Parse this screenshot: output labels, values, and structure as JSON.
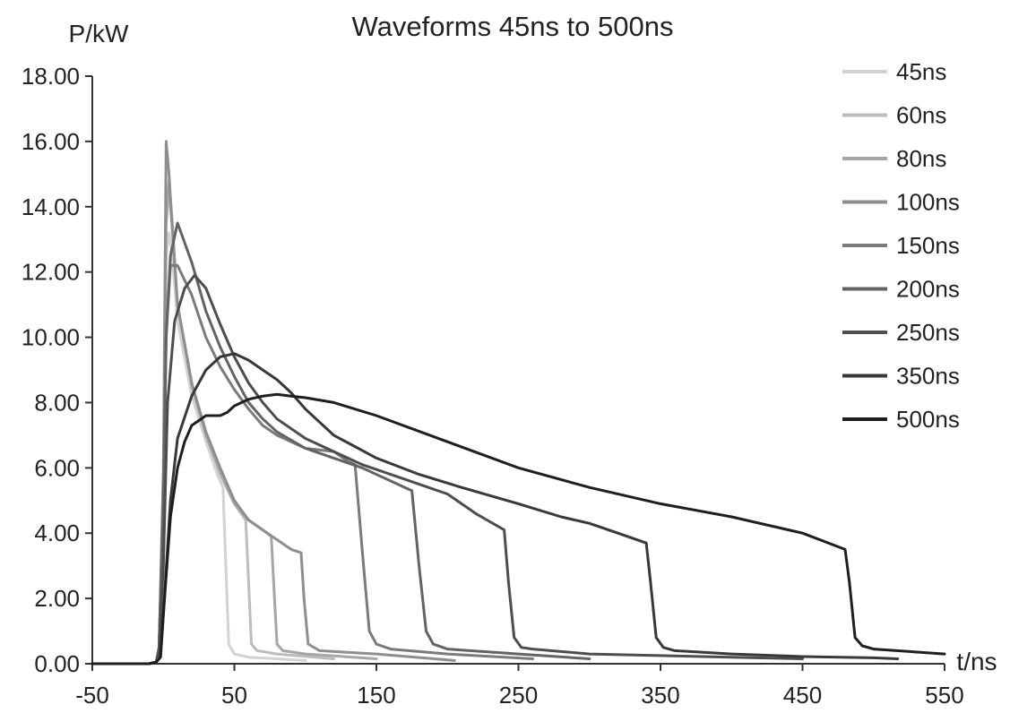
{
  "chart_data": {
    "type": "line",
    "title": "Waveforms 45ns to 500ns",
    "xlabel": "t/ns",
    "ylabel": "P/kW",
    "xlim": [
      -50,
      550
    ],
    "ylim": [
      0,
      18
    ],
    "x_ticks": [
      "-50",
      "50",
      "150",
      "250",
      "350",
      "450",
      "550"
    ],
    "y_ticks": [
      "0.00",
      "2.00",
      "4.00",
      "6.00",
      "8.00",
      "10.00",
      "12.00",
      "14.00",
      "16.00",
      "18.00"
    ],
    "grid": false,
    "legend": "right",
    "series": [
      {
        "name": "45ns",
        "color": "#d2d2d2",
        "x": [
          -50,
          -10,
          -5,
          -3,
          0,
          2,
          4,
          6,
          10,
          20,
          30,
          38,
          42,
          44,
          46,
          50,
          60,
          80,
          100
        ],
        "y": [
          0,
          0,
          0.05,
          0.5,
          5,
          12.5,
          13.2,
          12.6,
          10.5,
          8.2,
          6.8,
          5.8,
          5.4,
          3.0,
          0.6,
          0.3,
          0.2,
          0.15,
          0.1
        ]
      },
      {
        "name": "60ns",
        "color": "#bcbcbc",
        "x": [
          -50,
          -10,
          -5,
          -3,
          0,
          2,
          4,
          6,
          10,
          20,
          30,
          40,
          50,
          58,
          60,
          62,
          66,
          80,
          120
        ],
        "y": [
          0,
          0,
          0.05,
          0.5,
          5,
          13.5,
          14.5,
          13.5,
          11,
          8.5,
          7,
          5.8,
          4.9,
          4.4,
          2.5,
          0.6,
          0.4,
          0.3,
          0.15
        ]
      },
      {
        "name": "80ns",
        "color": "#a6a6a6",
        "x": [
          -50,
          -10,
          -5,
          -3,
          0,
          2,
          4,
          6,
          10,
          20,
          30,
          40,
          50,
          60,
          70,
          76,
          78,
          80,
          84,
          100,
          150
        ],
        "y": [
          0,
          0,
          0.05,
          0.5,
          5,
          13.5,
          14.8,
          13.7,
          11,
          8.6,
          7,
          5.9,
          4.9,
          4.4,
          4.1,
          3.9,
          2.2,
          0.6,
          0.4,
          0.3,
          0.15
        ]
      },
      {
        "name": "100ns",
        "color": "#8e8e8e",
        "x": [
          -50,
          -10,
          -5,
          -3,
          0,
          2,
          4,
          6,
          10,
          20,
          30,
          40,
          50,
          60,
          70,
          80,
          90,
          97,
          99,
          102,
          110,
          150,
          205
        ],
        "y": [
          0,
          0,
          0.05,
          0.5,
          6,
          16,
          15,
          13.5,
          11,
          8.6,
          7.1,
          6,
          5,
          4.4,
          4.1,
          3.8,
          3.5,
          3.4,
          2,
          0.6,
          0.4,
          0.3,
          0.1
        ]
      },
      {
        "name": "150ns",
        "color": "#7a7a7a",
        "x": [
          -50,
          -10,
          -5,
          -3,
          0,
          2,
          5,
          10,
          20,
          30,
          40,
          50,
          60,
          70,
          80,
          100,
          120,
          130,
          135,
          140,
          145,
          150,
          160,
          200,
          260
        ],
        "y": [
          0,
          0,
          0.05,
          0.5,
          5,
          10,
          12.2,
          12.2,
          11.3,
          10,
          9.1,
          8.4,
          7.8,
          7.3,
          7,
          6.6,
          6.5,
          6.2,
          6.1,
          3.5,
          1,
          0.6,
          0.45,
          0.3,
          0.15
        ]
      },
      {
        "name": "200ns",
        "color": "#636363",
        "x": [
          -50,
          -10,
          -5,
          -3,
          0,
          2,
          5,
          10,
          20,
          30,
          40,
          50,
          60,
          70,
          80,
          100,
          120,
          140,
          160,
          170,
          175,
          180,
          185,
          190,
          200,
          250,
          300
        ],
        "y": [
          0,
          0,
          0.05,
          0.5,
          5,
          10,
          12.5,
          13.5,
          12.3,
          10.8,
          9.7,
          8.8,
          8,
          7.5,
          7.1,
          6.6,
          6.3,
          6,
          5.6,
          5.4,
          5.3,
          3,
          1,
          0.6,
          0.45,
          0.3,
          0.15
        ]
      },
      {
        "name": "250ns",
        "color": "#4d4d4d",
        "x": [
          -50,
          -10,
          -5,
          -3,
          0,
          3,
          8,
          15,
          22,
          30,
          40,
          50,
          60,
          70,
          80,
          100,
          120,
          140,
          160,
          180,
          200,
          220,
          240,
          243,
          247,
          252,
          260,
          300,
          400,
          450
        ],
        "y": [
          0,
          0,
          0.05,
          0.3,
          3,
          8,
          10.5,
          11.5,
          11.9,
          11.5,
          10.4,
          9.4,
          8.6,
          8,
          7.5,
          6.9,
          6.5,
          6.1,
          5.8,
          5.5,
          5.2,
          4.6,
          4.1,
          2.5,
          0.8,
          0.5,
          0.45,
          0.3,
          0.2,
          0.15
        ]
      },
      {
        "name": "350ns",
        "color": "#383838",
        "x": [
          -50,
          -10,
          -5,
          -2,
          0,
          5,
          10,
          20,
          30,
          40,
          50,
          60,
          70,
          80,
          90,
          100,
          120,
          150,
          180,
          210,
          250,
          280,
          300,
          320,
          340,
          343,
          347,
          352,
          360,
          400,
          450,
          500,
          517
        ],
        "y": [
          0,
          0,
          0.05,
          0.2,
          1.5,
          5,
          6.9,
          8.2,
          9,
          9.4,
          9.5,
          9.3,
          9,
          8.7,
          8.3,
          7.8,
          7,
          6.3,
          5.8,
          5.4,
          4.9,
          4.5,
          4.3,
          4,
          3.7,
          2.5,
          0.8,
          0.5,
          0.4,
          0.3,
          0.22,
          0.18,
          0.15
        ]
      },
      {
        "name": "500ns",
        "color": "#1e1e1e",
        "x": [
          -50,
          -10,
          -5,
          -2,
          0,
          5,
          10,
          15,
          20,
          30,
          40,
          45,
          50,
          60,
          70,
          80,
          90,
          100,
          120,
          150,
          200,
          250,
          300,
          350,
          400,
          450,
          480,
          483,
          487,
          492,
          500,
          550
        ],
        "y": [
          0,
          0,
          0.05,
          0.2,
          1.5,
          4.5,
          6,
          6.8,
          7.3,
          7.6,
          7.6,
          7.7,
          7.9,
          8.1,
          8.2,
          8.25,
          8.2,
          8.15,
          8,
          7.6,
          6.8,
          6,
          5.4,
          4.9,
          4.5,
          4,
          3.5,
          2.5,
          0.8,
          0.55,
          0.45,
          0.3
        ]
      }
    ]
  }
}
